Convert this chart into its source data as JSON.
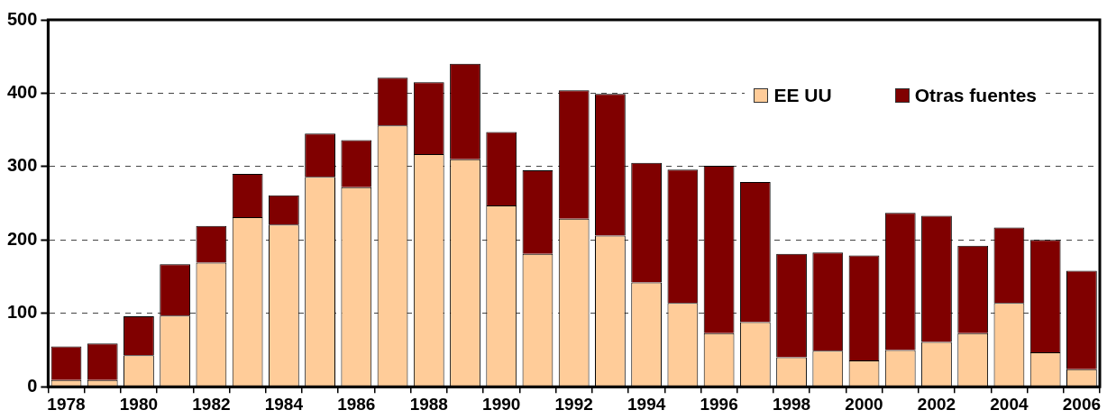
{
  "chart_data": {
    "type": "bar",
    "stacked": true,
    "categories": [
      "1978",
      null,
      "1980",
      null,
      "1982",
      null,
      "1984",
      null,
      "1986",
      null,
      "1988",
      null,
      "1990",
      null,
      "1992",
      null,
      "1994",
      null,
      "1996",
      null,
      "1998",
      null,
      "2000",
      null,
      "2002",
      null,
      "2004",
      null,
      "2006"
    ],
    "series": [
      {
        "name": "EE UU",
        "color": "#ffcc99",
        "values": [
          9,
          9,
          43,
          97,
          169,
          231,
          221,
          286,
          272,
          356,
          317,
          310,
          247,
          181,
          229,
          206,
          142,
          114,
          73,
          88,
          40,
          49,
          36,
          50,
          61,
          73,
          114,
          47,
          24
        ]
      },
      {
        "name": "Otras fuentes",
        "color": "#800000",
        "values": [
          46,
          50,
          53,
          70,
          50,
          59,
          40,
          59,
          64,
          65,
          98,
          130,
          100,
          114,
          175,
          193,
          163,
          182,
          228,
          191,
          141,
          134,
          143,
          187,
          172,
          119,
          103,
          153,
          134
        ]
      }
    ],
    "ylim": [
      0,
      500
    ],
    "yticks": [
      0,
      100,
      200,
      300,
      400,
      500
    ],
    "grid": "y",
    "legend": "top right"
  }
}
